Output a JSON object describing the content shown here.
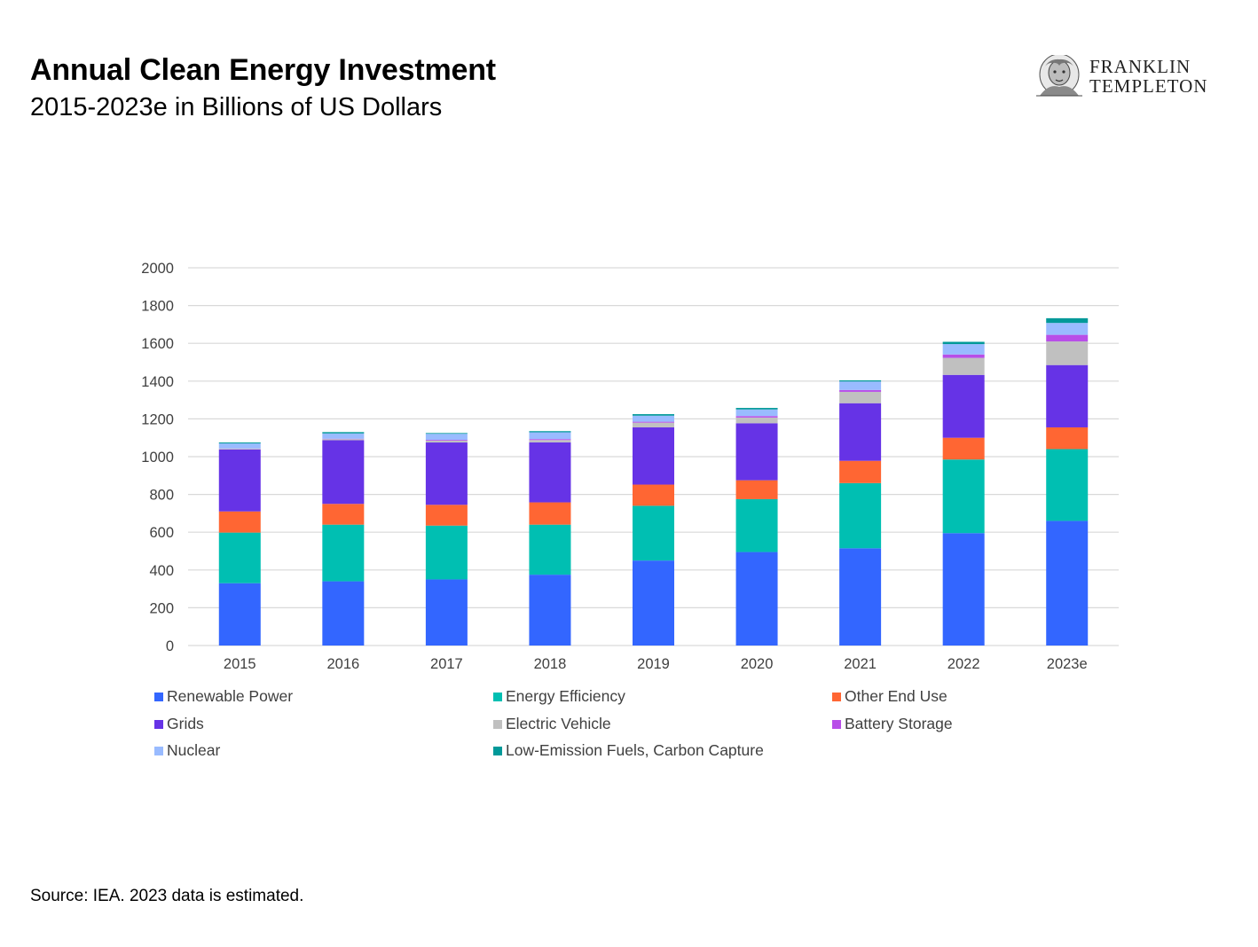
{
  "header": {
    "title": "Annual Clean Energy Investment",
    "subtitle": "2015-2023e in Billions of US Dollars"
  },
  "logo": {
    "line1": "FRANKLIN",
    "line2": "TEMPLETON",
    "icon": "benjamin-franklin-portrait-icon"
  },
  "footer": {
    "source": "Source: IEA. 2023 data is estimated."
  },
  "colors": {
    "Renewable Power": "#3366ff",
    "Energy Efficiency": "#00bfb2",
    "Other End Use": "#ff6633",
    "Grids": "#6633e6",
    "Electric Vehicle": "#c0c0c0",
    "Battery Storage": "#b84ee8",
    "Nuclear": "#99bbff",
    "Low-Emission Fuels, Carbon Capture": "#009999",
    "gridline": "#d9d9d9",
    "axis_text": "#404040"
  },
  "chart_data": {
    "type": "bar",
    "stacked": true,
    "title": "",
    "xlabel": "",
    "ylabel": "",
    "ylim": [
      0,
      2000
    ],
    "yticks": [
      "0",
      "200",
      "400",
      "600",
      "800",
      "1000",
      "1200",
      "1400",
      "1600",
      "1800",
      "2000"
    ],
    "grid": true,
    "legend_position": "bottom",
    "categories": [
      "2015",
      "2016",
      "2017",
      "2018",
      "2019",
      "2020",
      "2021",
      "2022",
      "2023e"
    ],
    "series": [
      {
        "name": "Renewable Power",
        "values": [
          330,
          340,
          350,
          375,
          450,
          495,
          515,
          595,
          660
        ]
      },
      {
        "name": "Energy Efficiency",
        "values": [
          268,
          300,
          285,
          265,
          290,
          280,
          345,
          390,
          380
        ]
      },
      {
        "name": "Other End Use",
        "values": [
          112,
          110,
          110,
          118,
          112,
          100,
          118,
          115,
          115
        ]
      },
      {
        "name": "Grids",
        "values": [
          328,
          337,
          330,
          318,
          303,
          302,
          305,
          333,
          330
        ]
      },
      {
        "name": "Electric Vehicle",
        "values": [
          4,
          6,
          10,
          12,
          25,
          30,
          60,
          90,
          125
        ]
      },
      {
        "name": "Battery Storage",
        "values": [
          1,
          2,
          4,
          5,
          5,
          8,
          10,
          18,
          35
        ]
      },
      {
        "name": "Nuclear",
        "values": [
          27,
          28,
          32,
          36,
          32,
          35,
          45,
          55,
          63
        ]
      },
      {
        "name": "Low-Emission Fuels, Carbon Capture",
        "values": [
          5,
          7,
          4,
          6,
          8,
          8,
          6,
          12,
          25
        ]
      }
    ]
  }
}
